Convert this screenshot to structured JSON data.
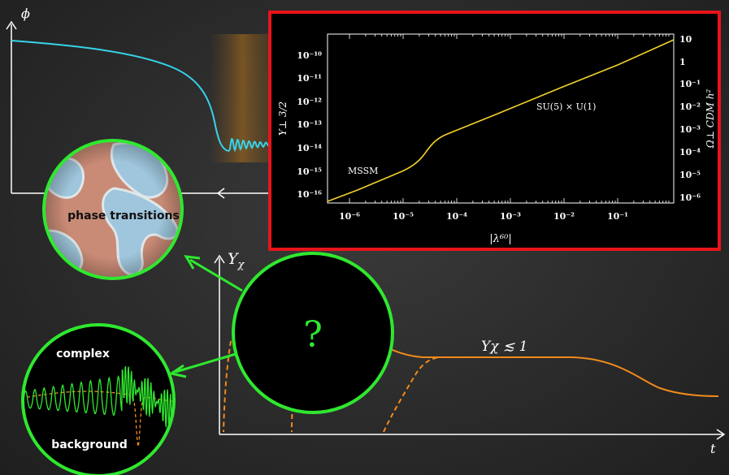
{
  "top_plot": {
    "y_label": "ϕ"
  },
  "bottom_plot": {
    "y_label": "Y",
    "y_label_sub": "χ",
    "x_label": "t",
    "annotation": "Yχ ≲ 1"
  },
  "bubbles": {
    "phase_label": "phase transitions",
    "complex_label": "complex",
    "background_label": "background",
    "question_mark": "?"
  },
  "inset": {
    "y_left_label": "Y⊥ 3/2",
    "y_right_label": "Ω⊥ CDM h²",
    "x_label": "|λ⁶⁰|",
    "curve_label_low": "MSSM",
    "curve_label_high": "SU(5) × U(1)",
    "y_left_ticks": [
      "10⁻¹⁰",
      "10⁻¹¹",
      "10⁻¹²",
      "10⁻¹³",
      "10⁻¹⁴",
      "10⁻¹⁵",
      "10⁻¹⁶"
    ],
    "y_right_ticks": [
      "10",
      "1",
      "10⁻¹",
      "10⁻²",
      "10⁻³",
      "10⁻⁴",
      "10⁻⁵",
      "10⁻⁶"
    ],
    "x_ticks": [
      "10⁻⁶",
      "10⁻⁵",
      "10⁻⁴",
      "10⁻³",
      "10⁻²",
      "10⁻¹"
    ],
    "border_color": "#e8141a"
  },
  "colors": {
    "cyan": "#36d3ea",
    "orange": "#f08a1c",
    "green": "#2fe82f",
    "yellow": "#f2d22a"
  }
}
